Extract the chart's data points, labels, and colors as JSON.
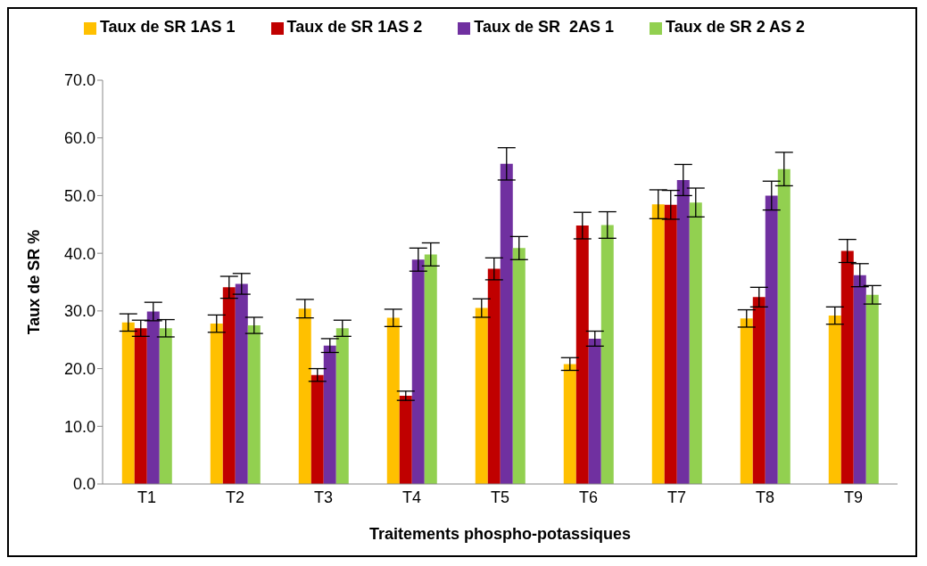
{
  "chart_data": {
    "type": "bar",
    "xlabel": "Traitements phospho-potassiques",
    "ylabel": "Taux de SR %",
    "categories": [
      "T1",
      "T2",
      "T3",
      "T4",
      "T5",
      "T6",
      "T7",
      "T8",
      "T9"
    ],
    "series": [
      {
        "name": "Taux de SR 1AS 1",
        "color": "#ffc000",
        "values": [
          28.0,
          27.8,
          30.4,
          28.8,
          30.5,
          20.8,
          48.5,
          28.7,
          29.2
        ],
        "errors": [
          1.5,
          1.5,
          1.6,
          1.5,
          1.6,
          1.1,
          2.5,
          1.5,
          1.5
        ]
      },
      {
        "name": "Taux de SR 1AS 2",
        "color": "#c00000",
        "values": [
          27.0,
          34.1,
          18.9,
          15.3,
          37.3,
          44.8,
          48.4,
          32.4,
          40.4
        ],
        "errors": [
          1.4,
          1.9,
          1.1,
          0.8,
          1.9,
          2.3,
          2.5,
          1.7,
          2.0
        ]
      },
      {
        "name": "Taux de SR  2AS 1",
        "color": "#7030a0",
        "values": [
          29.9,
          34.7,
          24.0,
          38.9,
          55.5,
          25.2,
          52.7,
          50.0,
          36.2
        ],
        "errors": [
          1.6,
          1.8,
          1.2,
          2.0,
          2.8,
          1.3,
          2.7,
          2.5,
          2.0
        ]
      },
      {
        "name": "Taux de SR 2 AS 2",
        "color": "#92d050",
        "values": [
          27.0,
          27.5,
          27.0,
          39.8,
          40.9,
          44.9,
          48.8,
          54.6,
          32.8
        ],
        "errors": [
          1.5,
          1.4,
          1.4,
          2.0,
          2.0,
          2.3,
          2.5,
          2.9,
          1.6
        ]
      }
    ],
    "ylim": [
      0,
      70
    ],
    "yticks": [
      {
        "value": 0,
        "label": "0.0"
      },
      {
        "value": 10,
        "label": "10.0"
      },
      {
        "value": 20,
        "label": "20.0"
      },
      {
        "value": 30,
        "label": "30.0"
      },
      {
        "value": 40,
        "label": "40.0"
      },
      {
        "value": 50,
        "label": "50.0"
      },
      {
        "value": 60,
        "label": "60.0"
      },
      {
        "value": 70,
        "label": "70.0"
      }
    ],
    "grid": false,
    "legend": "top"
  }
}
